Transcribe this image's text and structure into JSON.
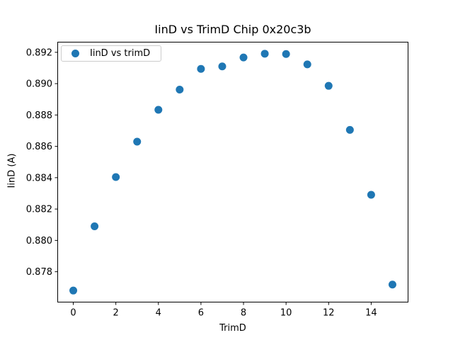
{
  "chart_data": {
    "type": "scatter",
    "title": "IinD vs TrimD Chip 0x20c3b",
    "xlabel": "TrimD",
    "ylabel": "IinD (A)",
    "legend_label": "IinD vs trimD",
    "legend_position": "upper left",
    "marker_color": "#1f77b4",
    "axis_color": "#000000",
    "legend_border_color": "#cccccc",
    "grid": false,
    "x": [
      0,
      1,
      2,
      3,
      4,
      5,
      6,
      7,
      8,
      9,
      10,
      11,
      12,
      13,
      14,
      15
    ],
    "y": [
      0.8768,
      0.8809,
      0.88404,
      0.8863,
      0.88833,
      0.88962,
      0.89094,
      0.8911,
      0.89167,
      0.89191,
      0.89189,
      0.89123,
      0.88986,
      0.88705,
      0.88291,
      0.87718
    ],
    "xticks": [
      0,
      2,
      4,
      6,
      8,
      10,
      12,
      14
    ],
    "yticks": [
      0.878,
      0.88,
      0.882,
      0.884,
      0.886,
      0.888,
      0.89,
      0.892
    ],
    "xlim": [
      -0.75,
      15.75
    ],
    "ylim": [
      0.87604,
      0.89267
    ]
  }
}
